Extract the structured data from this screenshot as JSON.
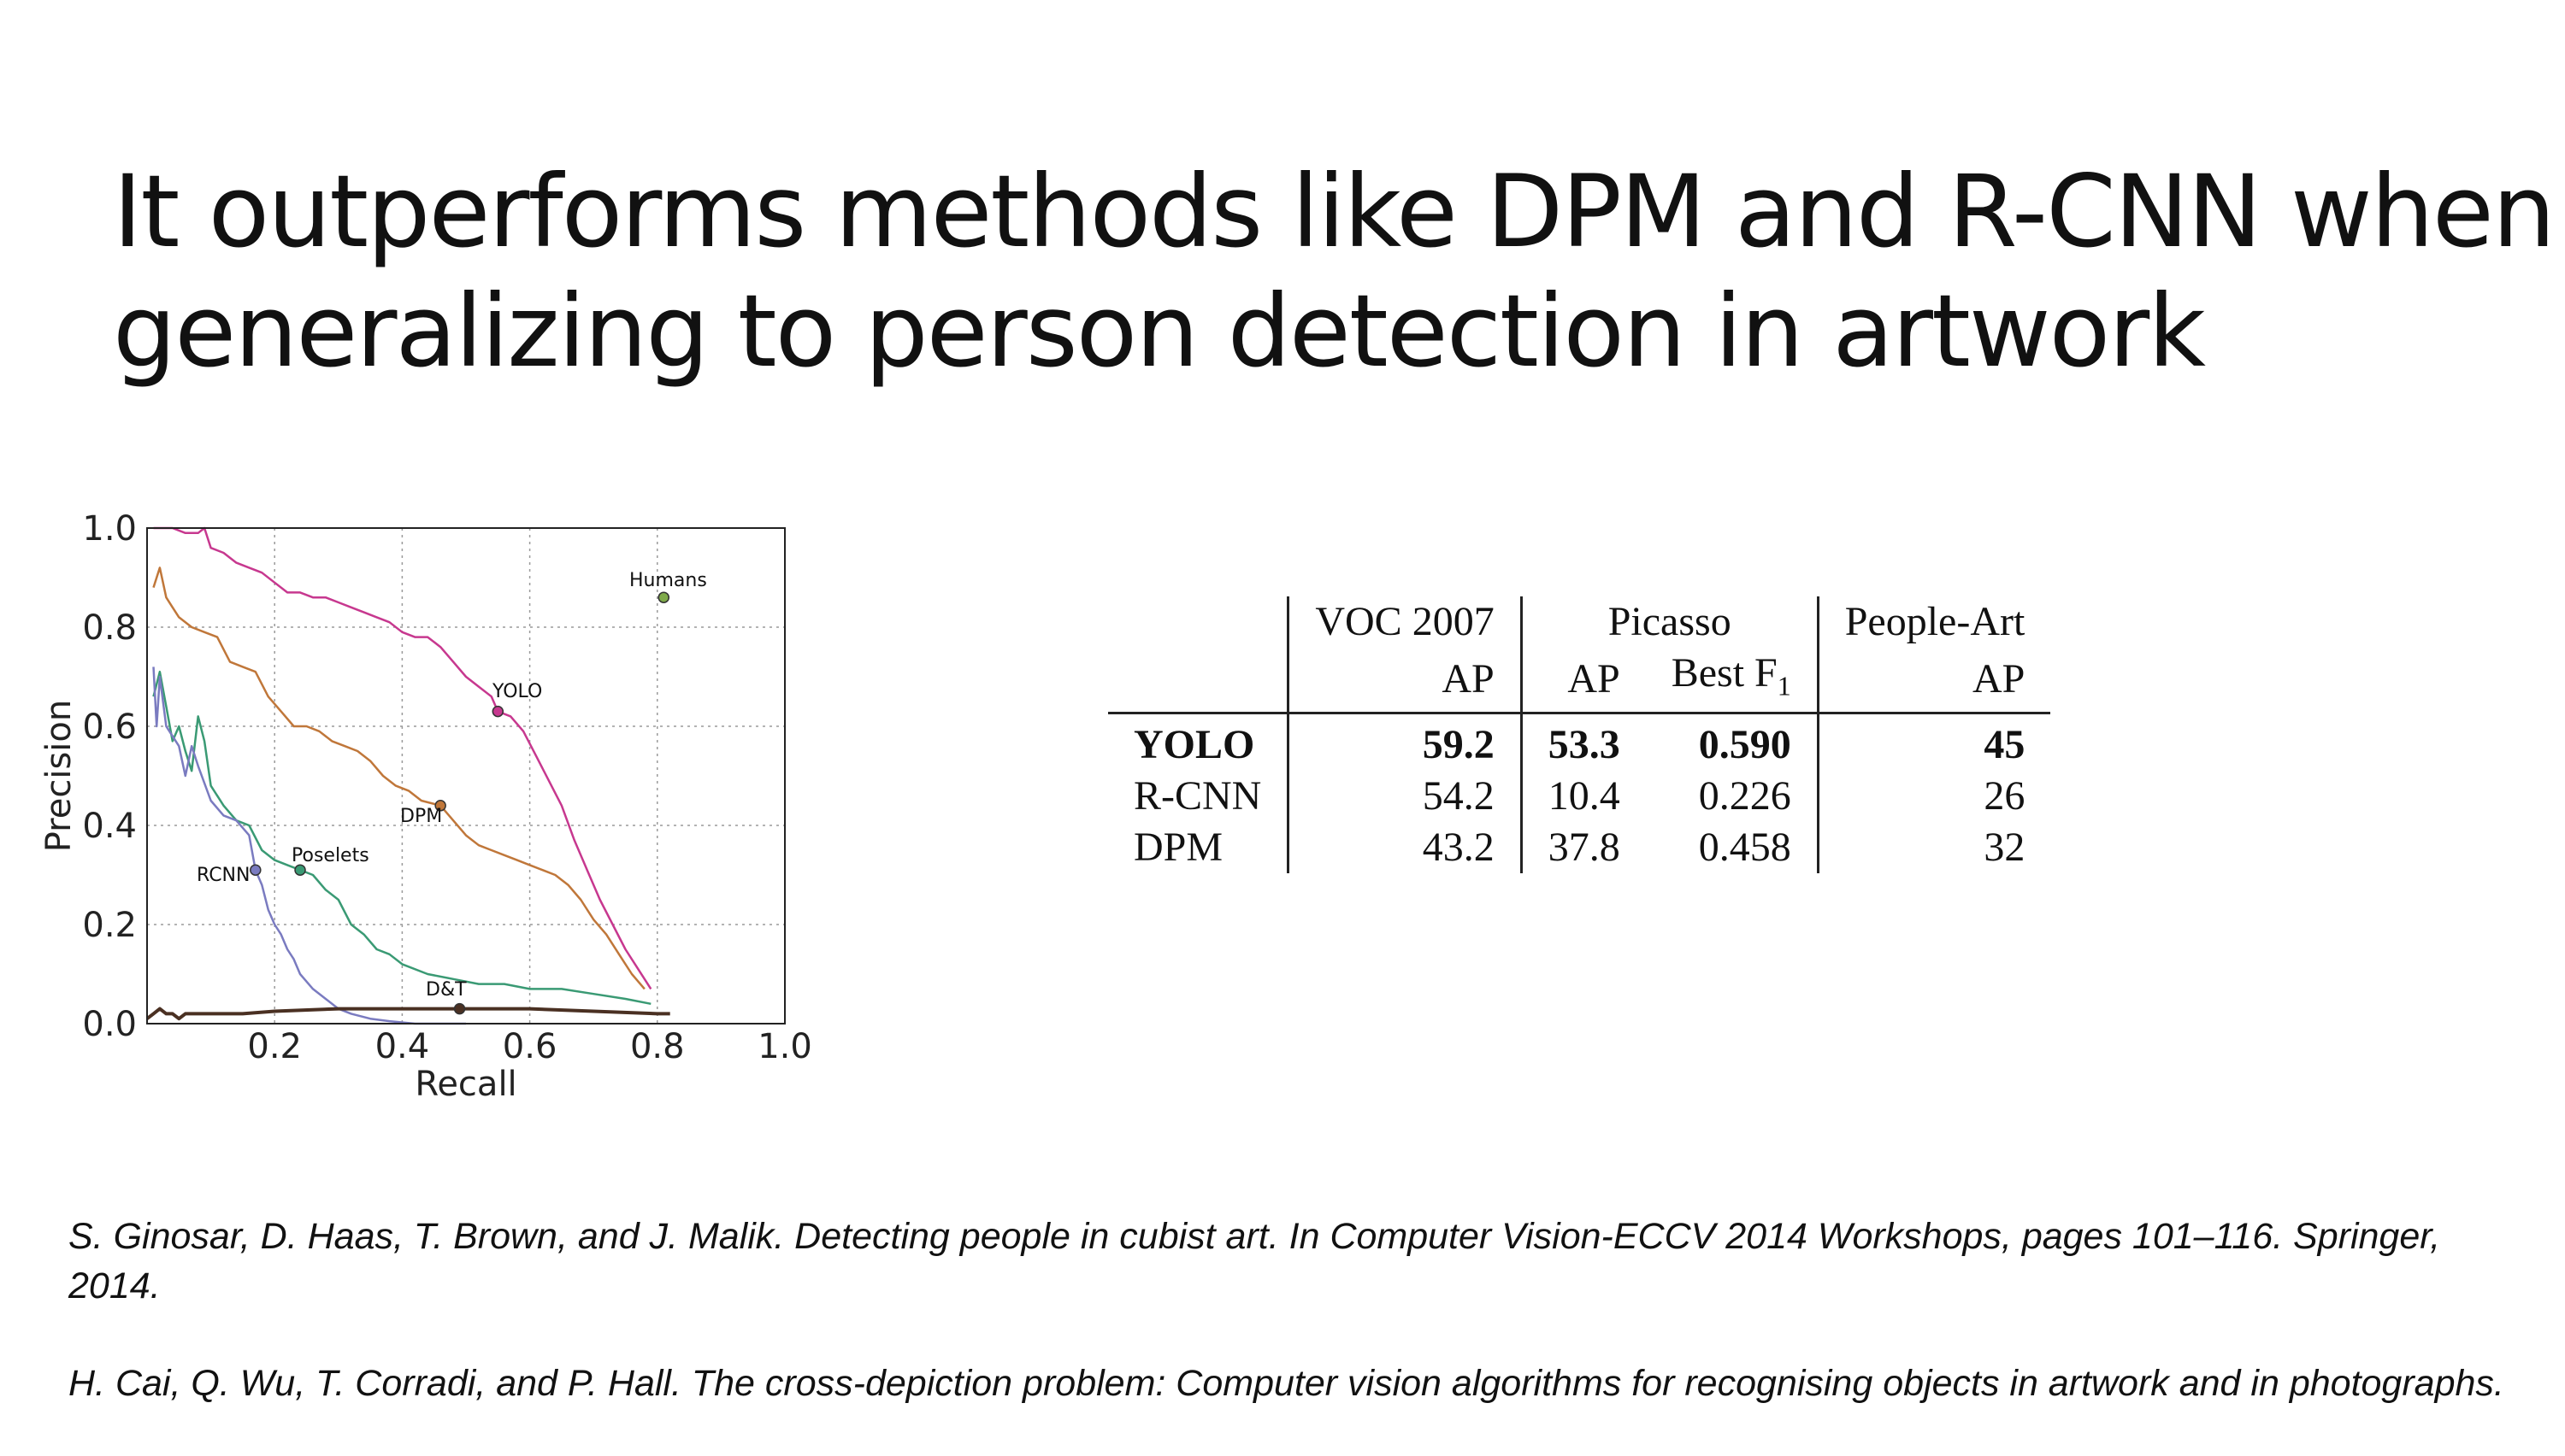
{
  "title_lines": [
    "It outperforms methods like DPM and R-CNN when",
    "generalizing to person detection in artwork"
  ],
  "chart_data": {
    "type": "line",
    "title": "",
    "xlabel": "Recall",
    "ylabel": "Precision",
    "xlim": [
      0,
      1
    ],
    "ylim": [
      0,
      1
    ],
    "xticks": [
      "0.2",
      "0.4",
      "0.6",
      "0.8",
      "1.0"
    ],
    "yticks": [
      "0.0",
      "0.2",
      "0.4",
      "0.6",
      "0.8",
      "1.0"
    ],
    "grid": true,
    "series": [
      {
        "name": "YOLO",
        "color": "#c7388f",
        "marker_at": [
          0.55,
          0.63
        ],
        "x": [
          0.01,
          0.02,
          0.04,
          0.06,
          0.08,
          0.09,
          0.1,
          0.12,
          0.14,
          0.16,
          0.18,
          0.2,
          0.22,
          0.24,
          0.26,
          0.28,
          0.3,
          0.32,
          0.34,
          0.36,
          0.38,
          0.4,
          0.42,
          0.44,
          0.46,
          0.48,
          0.5,
          0.52,
          0.54,
          0.55,
          0.57,
          0.59,
          0.61,
          0.63,
          0.65,
          0.67,
          0.69,
          0.71,
          0.73,
          0.75,
          0.77,
          0.79
        ],
        "y": [
          1.0,
          1.0,
          1.0,
          0.99,
          0.99,
          1.0,
          0.96,
          0.95,
          0.93,
          0.92,
          0.91,
          0.89,
          0.87,
          0.87,
          0.86,
          0.86,
          0.85,
          0.84,
          0.83,
          0.82,
          0.81,
          0.79,
          0.78,
          0.78,
          0.76,
          0.73,
          0.7,
          0.68,
          0.66,
          0.63,
          0.62,
          0.59,
          0.54,
          0.49,
          0.44,
          0.37,
          0.31,
          0.25,
          0.2,
          0.15,
          0.11,
          0.07
        ]
      },
      {
        "name": "DPM",
        "color": "#c0773a",
        "marker_at": [
          0.46,
          0.44
        ],
        "x": [
          0.01,
          0.02,
          0.03,
          0.04,
          0.05,
          0.07,
          0.09,
          0.11,
          0.13,
          0.15,
          0.17,
          0.19,
          0.21,
          0.23,
          0.25,
          0.27,
          0.29,
          0.31,
          0.33,
          0.35,
          0.37,
          0.39,
          0.41,
          0.43,
          0.46,
          0.48,
          0.5,
          0.52,
          0.54,
          0.56,
          0.58,
          0.6,
          0.62,
          0.64,
          0.66,
          0.68,
          0.7,
          0.72,
          0.74,
          0.76,
          0.78
        ],
        "y": [
          0.88,
          0.92,
          0.86,
          0.84,
          0.82,
          0.8,
          0.79,
          0.78,
          0.73,
          0.72,
          0.71,
          0.66,
          0.63,
          0.6,
          0.6,
          0.59,
          0.57,
          0.56,
          0.55,
          0.53,
          0.5,
          0.48,
          0.47,
          0.45,
          0.44,
          0.41,
          0.38,
          0.36,
          0.35,
          0.34,
          0.33,
          0.32,
          0.31,
          0.3,
          0.28,
          0.25,
          0.21,
          0.18,
          0.14,
          0.1,
          0.07
        ]
      },
      {
        "name": "Poselets",
        "color": "#3a9a74",
        "marker_at": [
          0.24,
          0.31
        ],
        "x": [
          0.01,
          0.02,
          0.03,
          0.04,
          0.05,
          0.06,
          0.07,
          0.08,
          0.09,
          0.1,
          0.12,
          0.14,
          0.16,
          0.18,
          0.2,
          0.22,
          0.24,
          0.26,
          0.28,
          0.3,
          0.32,
          0.34,
          0.36,
          0.38,
          0.4,
          0.44,
          0.48,
          0.52,
          0.56,
          0.6,
          0.65,
          0.7,
          0.75,
          0.79
        ],
        "y": [
          0.66,
          0.71,
          0.64,
          0.57,
          0.6,
          0.55,
          0.51,
          0.62,
          0.57,
          0.48,
          0.44,
          0.41,
          0.4,
          0.35,
          0.33,
          0.32,
          0.31,
          0.3,
          0.27,
          0.25,
          0.2,
          0.18,
          0.15,
          0.14,
          0.12,
          0.1,
          0.09,
          0.08,
          0.08,
          0.07,
          0.07,
          0.06,
          0.05,
          0.04
        ]
      },
      {
        "name": "RCNN",
        "color": "#7a7bc0",
        "marker_at": [
          0.17,
          0.31
        ],
        "x": [
          0.01,
          0.015,
          0.02,
          0.03,
          0.04,
          0.05,
          0.06,
          0.07,
          0.08,
          0.1,
          0.12,
          0.14,
          0.16,
          0.17,
          0.18,
          0.19,
          0.2,
          0.21,
          0.22,
          0.23,
          0.24,
          0.26,
          0.28,
          0.3,
          0.32,
          0.35,
          0.38,
          0.42,
          0.46,
          0.5
        ],
        "y": [
          0.72,
          0.6,
          0.7,
          0.6,
          0.58,
          0.56,
          0.5,
          0.56,
          0.52,
          0.45,
          0.42,
          0.41,
          0.38,
          0.31,
          0.28,
          0.23,
          0.2,
          0.18,
          0.15,
          0.13,
          0.1,
          0.07,
          0.05,
          0.03,
          0.02,
          0.01,
          0.005,
          0.0,
          0.0,
          0.0
        ]
      },
      {
        "name": "D&T",
        "color": "#4a3022",
        "marker_at": [
          0.49,
          0.03
        ],
        "x": [
          0.0,
          0.01,
          0.02,
          0.03,
          0.04,
          0.05,
          0.06,
          0.08,
          0.1,
          0.15,
          0.2,
          0.3,
          0.4,
          0.5,
          0.6,
          0.7,
          0.8,
          0.82
        ],
        "y": [
          0.01,
          0.02,
          0.03,
          0.02,
          0.02,
          0.01,
          0.02,
          0.02,
          0.02,
          0.02,
          0.025,
          0.03,
          0.03,
          0.03,
          0.03,
          0.025,
          0.02,
          0.02
        ]
      }
    ],
    "points": [
      {
        "name": "Humans",
        "x": 0.81,
        "y": 0.86,
        "color": "#7faa4a"
      }
    ],
    "labels": {
      "humans": "Humans",
      "yolo": "YOLO",
      "dpm": "DPM",
      "poselets": "Poselets",
      "rcnn": "RCNN",
      "dt": "D&T"
    }
  },
  "table": {
    "header_groups": [
      "VOC 2007",
      "Picasso",
      "People-Art"
    ],
    "subheaders": [
      "AP",
      "AP",
      "Best F",
      "1",
      "AP"
    ],
    "rows": [
      {
        "name": "YOLO",
        "voc_ap": "59.2",
        "picasso_ap": "53.3",
        "picasso_f1": "0.590",
        "peopleart_ap": "45"
      },
      {
        "name": "R-CNN",
        "voc_ap": "54.2",
        "picasso_ap": "10.4",
        "picasso_f1": "0.226",
        "peopleart_ap": "26"
      },
      {
        "name": "DPM",
        "voc_ap": "43.2",
        "picasso_ap": "37.8",
        "picasso_f1": "0.458",
        "peopleart_ap": "32"
      }
    ]
  },
  "references": [
    "S. Ginosar, D. Haas, T. Brown, and J. Malik. Detecting people in cubist art. In Computer Vision-ECCV 2014 Workshops, pages 101–116. Springer, 2014.",
    "H. Cai, Q. Wu, T. Corradi, and P. Hall. The cross-depiction problem: Computer vision algorithms for recognising objects in artwork and in photographs."
  ]
}
